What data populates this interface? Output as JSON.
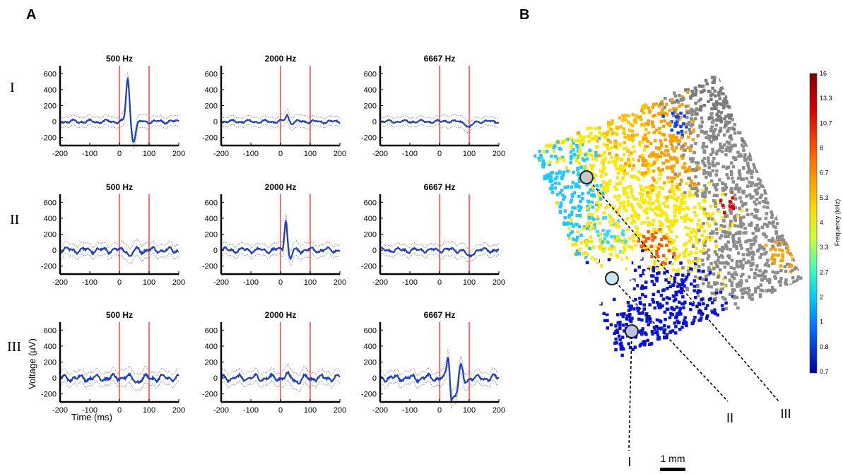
{
  "figure": {
    "panel_a_label": "A",
    "panel_b_label": "B",
    "row_labels": [
      "I",
      "II",
      "III"
    ],
    "y_axis_label": "Voltage (µV)",
    "x_axis_label": "Time (ms)",
    "scale_bar_label": "1 mm",
    "colorbar_label": "Frequency (kHz)",
    "colorbar_ticks": [
      "16",
      "13.3",
      "10.7",
      "8",
      "6.7",
      "5.3",
      "4",
      "3.3",
      "2.7",
      "2",
      "1",
      "0.8",
      "0.7"
    ],
    "site_labels": [
      "I",
      "II",
      "III"
    ]
  },
  "chart_data": {
    "type": "line",
    "columns": [
      "500 Hz",
      "2000 Hz",
      "6667 Hz"
    ],
    "xlim": [
      -200,
      200
    ],
    "ylim": [
      -300,
      700
    ],
    "x_ticks": [
      -200,
      -100,
      0,
      100,
      200
    ],
    "y_ticks": [
      600,
      400,
      200,
      0,
      -200
    ],
    "stim_markers": [
      0,
      100
    ],
    "colors": {
      "mean": "#1f3fbf",
      "sem": "#8a8a8a",
      "stim": "#ff7070"
    },
    "responses": [
      [
        {
          "peak_ms": 28,
          "amplitude": 540,
          "width": 8,
          "trough_ms": 48,
          "trough": -230,
          "noise": 30
        },
        {
          "peak_ms": 22,
          "amplitude": 80,
          "width": 8,
          "trough_ms": 40,
          "trough": -20,
          "noise": 25
        },
        {
          "peak_ms": 20,
          "amplitude": 10,
          "width": 10,
          "trough_ms": 100,
          "trough": -80,
          "noise": 22
        }
      ],
      [
        {
          "peak_ms": 25,
          "amplitude": 40,
          "width": 8,
          "trough_ms": 35,
          "trough": -90,
          "noise": 45
        },
        {
          "peak_ms": 18,
          "amplitude": 400,
          "width": 7,
          "trough_ms": 32,
          "trough": -120,
          "noise": 40
        },
        {
          "peak_ms": 20,
          "amplitude": 10,
          "width": 10,
          "trough_ms": 100,
          "trough": -90,
          "noise": 35
        }
      ],
      [
        {
          "peak_ms": 20,
          "amplitude": 20,
          "width": 10,
          "trough_ms": 60,
          "trough": -40,
          "noise": 50
        },
        {
          "peak_ms": 20,
          "amplitude": 30,
          "width": 10,
          "trough_ms": 60,
          "trough": -40,
          "noise": 50
        },
        {
          "peak_ms": 30,
          "amplitude": 310,
          "width": 7,
          "trough_ms": 42,
          "trough": -330,
          "noise": 50,
          "ringing": true
        }
      ]
    ]
  }
}
